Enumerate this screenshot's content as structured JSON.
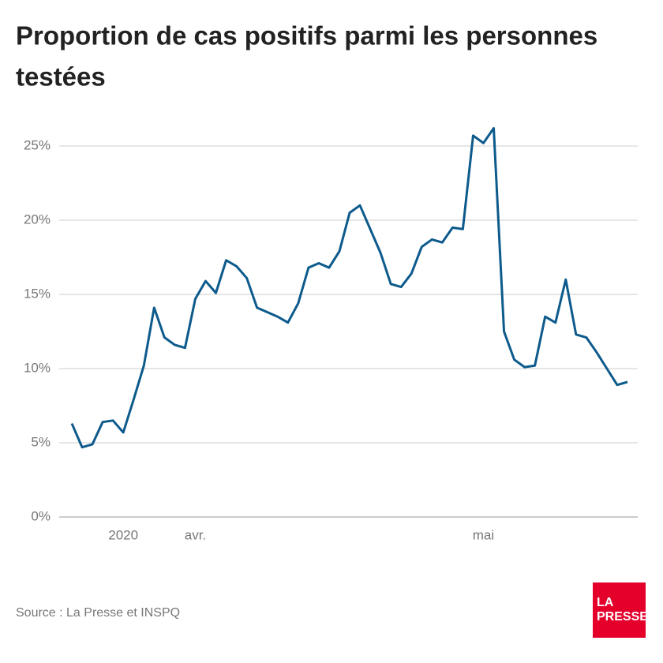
{
  "chart_data": {
    "type": "line",
    "title": [
      "Proportion de cas positifs parmi les personnes",
      "testées"
    ],
    "source": "Source : La Presse et INSPQ",
    "logo": [
      "LA",
      "PRESSE"
    ],
    "categories": [
      null,
      null,
      null,
      null,
      null,
      "2020",
      null,
      null,
      null,
      null,
      null,
      null,
      "avr.",
      null,
      null,
      null,
      null,
      null,
      null,
      null,
      null,
      null,
      null,
      null,
      null,
      null,
      null,
      null,
      null,
      null,
      null,
      null,
      null,
      null,
      null,
      null,
      null,
      null,
      null,
      null,
      "mai",
      null,
      null,
      null,
      null,
      null,
      null,
      null,
      null,
      null,
      null,
      null,
      null,
      null,
      null
    ],
    "series": [
      {
        "name": "Proportion de cas positifs",
        "color": "#0d5a8c",
        "values": [
          6.3,
          4.7,
          4.9,
          6.4,
          6.5,
          5.7,
          7.9,
          10.2,
          14.1,
          12.1,
          11.6,
          11.4,
          14.7,
          15.9,
          15.1,
          17.3,
          16.9,
          16.1,
          14.1,
          13.8,
          13.5,
          13.1,
          14.4,
          16.8,
          17.1,
          16.8,
          17.9,
          20.5,
          21.0,
          19.4,
          17.8,
          15.7,
          15.5,
          16.4,
          18.2,
          18.7,
          18.5,
          19.5,
          19.4,
          25.7,
          25.2,
          26.2,
          12.5,
          10.6,
          10.1,
          10.2,
          13.5,
          13.1,
          16.0,
          12.3,
          12.1,
          11.1,
          10.0,
          8.9,
          9.1
        ]
      }
    ],
    "ylim": [
      0,
      25
    ],
    "yticks": [
      {
        "value": 0,
        "label": "0%"
      },
      {
        "value": 5,
        "label": "5%"
      },
      {
        "value": 10,
        "label": "10%"
      },
      {
        "value": 15,
        "label": "15%"
      },
      {
        "value": 20,
        "label": "20%"
      },
      {
        "value": 25,
        "label": "25%"
      }
    ],
    "grid": true
  }
}
